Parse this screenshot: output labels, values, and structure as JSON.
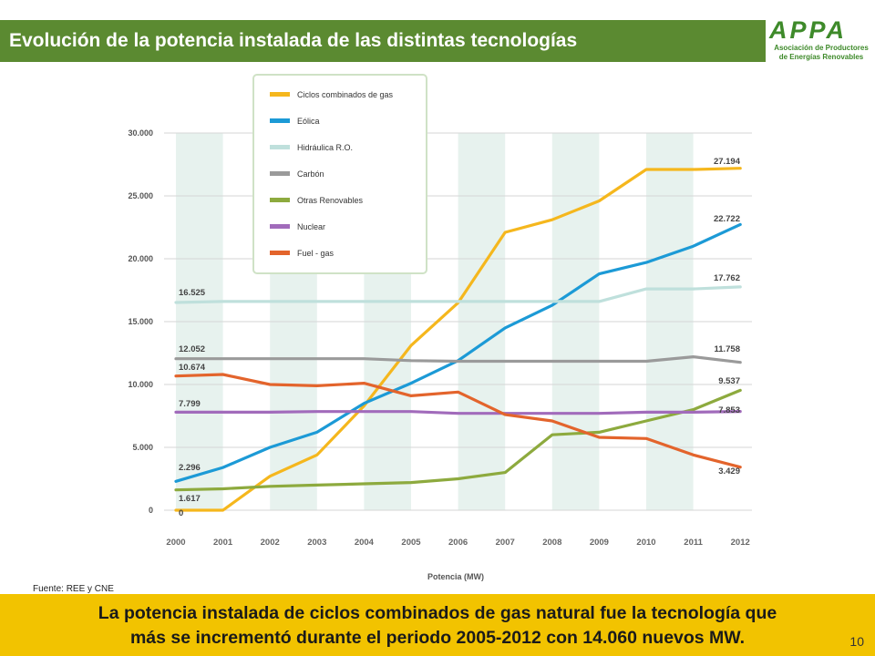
{
  "header": {
    "title": "Evolución de la potencia instalada de las distintas tecnologías"
  },
  "logo": {
    "letters": "APPA",
    "line1": "Asociación de Productores",
    "line2": "de Energías Renovables"
  },
  "source": "Fuente: REE y CNE",
  "footer": {
    "line1": "La potencia instalada de ciclos combinados de gas natural fue la tecnología que",
    "line2": "más se incrementó durante el periodo 2005-2012 con 14.060 nuevos MW.",
    "page_number": "10"
  },
  "chart_data": {
    "type": "line",
    "xlabel": "Potencia (MW)",
    "ylabel": "",
    "ylim": [
      0,
      30000
    ],
    "yticks": [
      0,
      5000,
      10000,
      15000,
      20000,
      25000,
      30000
    ],
    "ytick_labels": [
      "0",
      "5.000",
      "10.000",
      "15.000",
      "20.000",
      "25.000",
      "30.000"
    ],
    "categories": [
      "2000",
      "2001",
      "2002",
      "2003",
      "2004",
      "2005",
      "2006",
      "2007",
      "2008",
      "2009",
      "2010",
      "2011",
      "2012"
    ],
    "legend_position": "top-center",
    "series": [
      {
        "name": "Ciclos combinados de gas",
        "color": "#f5b71d",
        "values": [
          0,
          0,
          2700,
          4400,
          8300,
          13100,
          16500,
          22100,
          23100,
          24600,
          27100,
          27100,
          27194
        ],
        "start_label": "0",
        "end_label": "27.194"
      },
      {
        "name": "Eólica",
        "color": "#1c9ad6",
        "values": [
          2296,
          3400,
          5000,
          6200,
          8500,
          10100,
          11900,
          14500,
          16300,
          18800,
          19700,
          21000,
          22722
        ],
        "start_label": "2.296",
        "end_label": "22.722"
      },
      {
        "name": "Hidráulica R.O.",
        "color": "#bfe0dc",
        "values": [
          16525,
          16600,
          16600,
          16600,
          16600,
          16600,
          16600,
          16600,
          16600,
          16600,
          17600,
          17600,
          17762
        ],
        "start_label": "16.525",
        "end_label": "17.762"
      },
      {
        "name": "Carbón",
        "color": "#9a9a9a",
        "values": [
          12052,
          12052,
          12052,
          12052,
          12052,
          11900,
          11850,
          11850,
          11850,
          11850,
          11850,
          12200,
          11758
        ],
        "start_label": "12.052",
        "end_label": "11.758"
      },
      {
        "name": "Otras Renovables",
        "color": "#8daa3e",
        "values": [
          1617,
          1700,
          1900,
          2000,
          2100,
          2200,
          2500,
          3000,
          6000,
          6200,
          7100,
          8000,
          9537
        ],
        "start_label": "1.617",
        "end_label": "9.537"
      },
      {
        "name": "Nuclear",
        "color": "#a16bbb",
        "values": [
          7799,
          7799,
          7799,
          7850,
          7850,
          7850,
          7700,
          7700,
          7700,
          7700,
          7800,
          7800,
          7853
        ],
        "start_label": "7.799",
        "end_label": "7.853"
      },
      {
        "name": "Fuel - gas",
        "color": "#e3642c",
        "values": [
          10674,
          10800,
          10000,
          9900,
          10100,
          9100,
          9400,
          7600,
          7100,
          5800,
          5700,
          4400,
          3429
        ],
        "start_label": "10.674",
        "end_label": "3.429"
      }
    ]
  }
}
